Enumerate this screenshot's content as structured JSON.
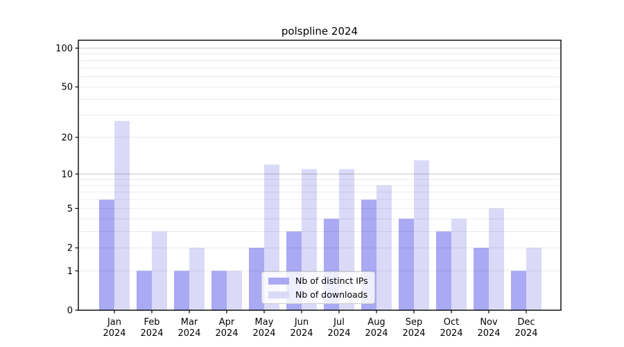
{
  "chart_data": {
    "type": "bar",
    "title": "polspline 2024",
    "categories": [
      "Jan",
      "Feb",
      "Mar",
      "Apr",
      "May",
      "Jun",
      "Jul",
      "Aug",
      "Sep",
      "Oct",
      "Nov",
      "Dec"
    ],
    "category_year": "2024",
    "series": [
      {
        "name": "Nb of distinct IPs",
        "color": "#a9a9f4",
        "values": [
          6,
          1,
          1,
          1,
          2,
          3,
          4,
          6,
          4,
          3,
          2,
          1
        ]
      },
      {
        "name": "Nb of downloads",
        "color": "#dadaf8",
        "values": [
          27,
          3,
          2,
          1,
          12,
          11,
          11,
          8,
          13,
          4,
          5,
          2
        ]
      }
    ],
    "xlabel": "",
    "ylabel": "",
    "yscale": "log1p",
    "ylim": [
      0,
      115
    ],
    "yticks": [
      0,
      1,
      2,
      5,
      10,
      20,
      50,
      100
    ],
    "gridlines_minor": [
      1,
      2,
      3,
      4,
      5,
      6,
      7,
      8,
      9,
      20,
      30,
      40,
      50,
      60,
      70,
      80,
      90
    ],
    "gridlines_major": [
      10,
      100
    ],
    "grid": true,
    "legend_position": "lower center",
    "colors": {
      "frame": "#000000",
      "tick_text": "#000000",
      "gridline_minor": "rgba(0,0,0,0.08)",
      "gridline_major": "rgba(0,0,0,0.19)"
    }
  }
}
